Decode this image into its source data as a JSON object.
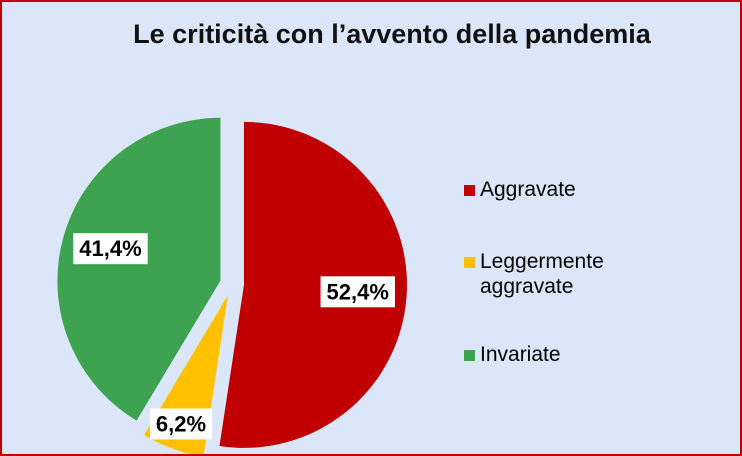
{
  "chart_data": {
    "type": "pie",
    "title": "Le criticità con l’avvento della pandemia",
    "categories": [
      "Aggravate",
      "Leggermente aggravate",
      "Invariate"
    ],
    "values": [
      52.4,
      6.2,
      41.4
    ],
    "value_labels": [
      "52,4%",
      "6,2%",
      "41,4%"
    ],
    "colors": [
      "#c00000",
      "#ffc000",
      "#3da350"
    ],
    "legend": "right"
  }
}
